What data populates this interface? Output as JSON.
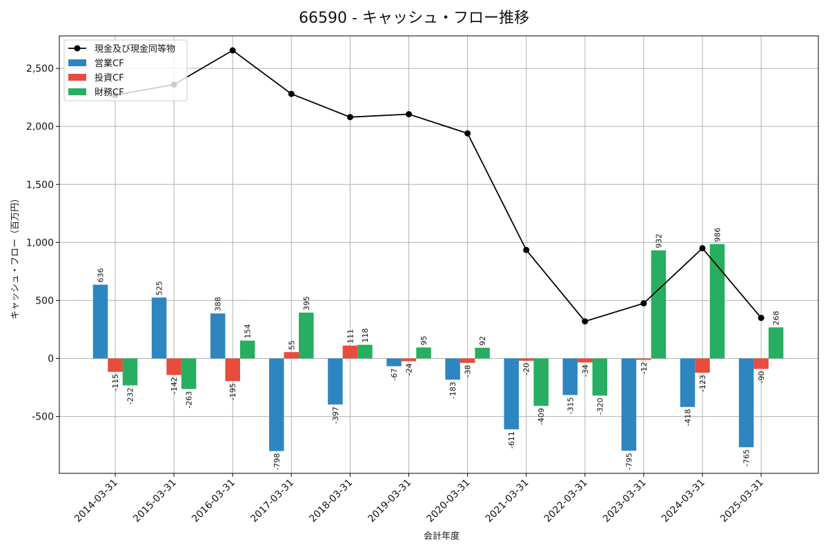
{
  "chart_data": {
    "type": "bar",
    "title": "66590 - キャッシュ・フロー推移",
    "xlabel": "会計年度",
    "ylabel": "キャッシュ・フロー（百万円）",
    "ylim": [
      -990,
      2780
    ],
    "yticks": [
      -500,
      0,
      500,
      1000,
      1500,
      2000,
      2500
    ],
    "ytick_labels": [
      "-500",
      "0",
      "500",
      "1,000",
      "1,500",
      "2,000",
      "2,500"
    ],
    "grid": true,
    "legend_position": "top-left",
    "categories": [
      "2014-03-31",
      "2015-03-31",
      "2016-03-31",
      "2017-03-31",
      "2018-03-31",
      "2019-03-31",
      "2020-03-31",
      "2021-03-31",
      "2022-03-31",
      "2023-03-31",
      "2024-03-31",
      "2025-03-31"
    ],
    "series": [
      {
        "name": "営業CF",
        "kind": "bar",
        "color": "#2e86c1",
        "values": [
          636,
          525,
          388,
          -798,
          -397,
          -67,
          -183,
          -611,
          -315,
          -795,
          -418,
          -765
        ]
      },
      {
        "name": "投資CF",
        "kind": "bar",
        "color": "#e74c3c",
        "values": [
          -115,
          -142,
          -195,
          55,
          111,
          -24,
          -38,
          -20,
          -34,
          -12,
          -123,
          -90
        ]
      },
      {
        "name": "財務CF",
        "kind": "bar",
        "color": "#27ae60",
        "values": [
          -232,
          -263,
          154,
          395,
          118,
          95,
          92,
          -409,
          -320,
          932,
          986,
          268
        ]
      },
      {
        "name": "現金及び現金同等物",
        "kind": "line",
        "color": "#000000",
        "values": [
          2270,
          2360,
          2655,
          2280,
          2080,
          2105,
          1940,
          935,
          320,
          475,
          950,
          350
        ]
      }
    ]
  }
}
